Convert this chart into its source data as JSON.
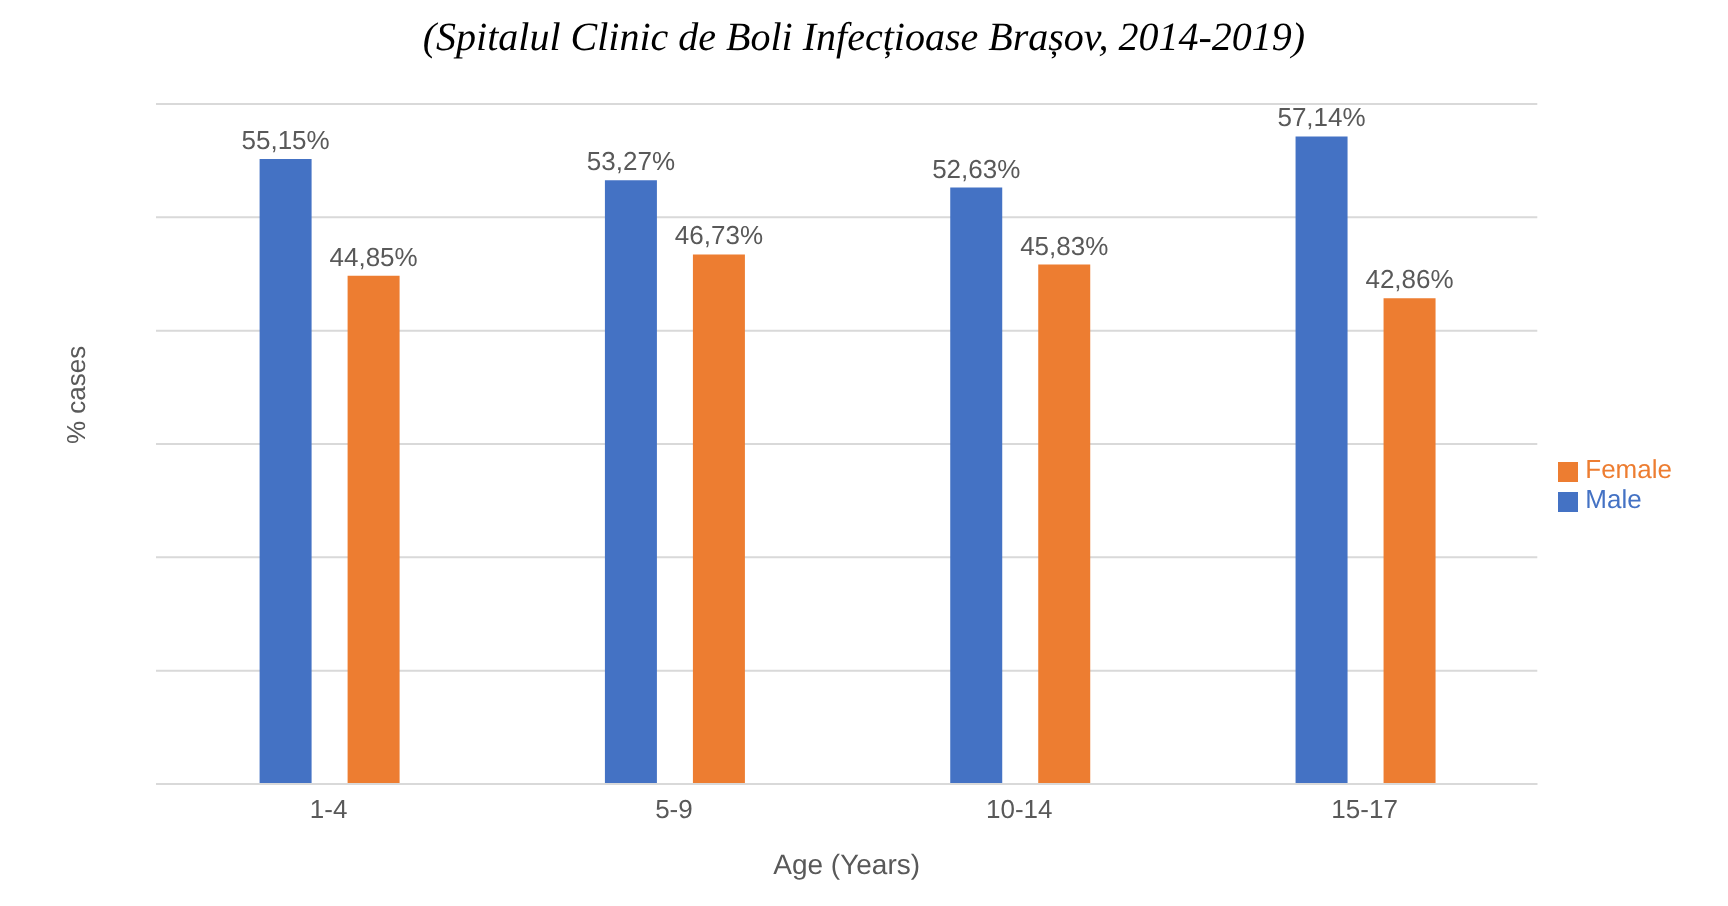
{
  "chart_data": {
    "type": "bar",
    "title": "(Spitalul Clinic de Boli Infecțioase Brașov, 2014-2019)",
    "xlabel": "Age (Years)",
    "ylabel": "% cases",
    "categories": [
      "1-4",
      "5-9",
      "10-14",
      "15-17"
    ],
    "series": [
      {
        "name": "Male",
        "color": "#4472c4",
        "values": [
          55.15,
          53.27,
          52.63,
          57.14
        ],
        "value_labels": [
          "55,15%",
          "53,27%",
          "52,63%",
          "57,14%"
        ]
      },
      {
        "name": "Female",
        "color": "#ed7d31",
        "values": [
          44.85,
          46.73,
          45.83,
          42.86
        ],
        "value_labels": [
          "44,85%",
          "46,73%",
          "45,83%",
          "42,86%"
        ]
      }
    ],
    "ylim": [
      0,
      60
    ],
    "yticks": [
      {
        "value": 0,
        "label": null
      },
      {
        "value": 10,
        "label": null
      },
      {
        "value": 20,
        "label": null
      },
      {
        "value": 30,
        "label": null
      },
      {
        "value": 40,
        "label": null
      },
      {
        "value": 50,
        "label": null
      },
      {
        "value": 60,
        "label": null
      }
    ],
    "grid": "y",
    "legend": "right",
    "tick_labels": "x"
  }
}
